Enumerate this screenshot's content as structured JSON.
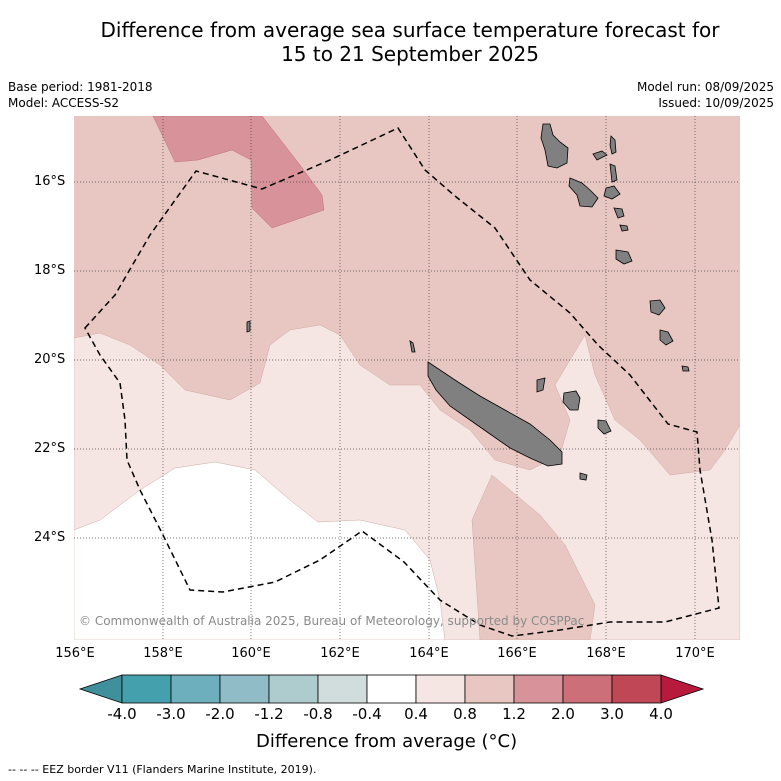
{
  "title_line1": "Difference from average sea surface temperature forecast for",
  "title_line2": "15 to 21 September 2025",
  "base_period": "Base period: 1981-2018",
  "model": "Model: ACCESS-S2",
  "model_run": "Model run: 08/09/2025",
  "issued": "Issued: 10/09/2025",
  "lat_labels": [
    "16°S",
    "18°S",
    "20°S",
    "22°S",
    "24°S"
  ],
  "lon_labels": [
    "156°E",
    "158°E",
    "160°E",
    "162°E",
    "164°E",
    "166°E",
    "168°E",
    "170°E"
  ],
  "copyright": "© Commonwealth of Australia 2025, Bureau of Meteorology, supported by COSPPac",
  "colorbar": {
    "title": "Difference from average (°C)",
    "ticks": [
      "-4.0",
      "-3.0",
      "-2.0",
      "-1.2",
      "-0.8",
      "-0.4",
      "0.4",
      "0.8",
      "1.2",
      "2.0",
      "3.0",
      "4.0"
    ],
    "colors": [
      "#45a0ae",
      "#6dafbd",
      "#8fbcc6",
      "#aecbcd",
      "#d1dcdc",
      "#ffffff",
      "#f5e6e4",
      "#e8c7c2",
      "#d7929a",
      "#cd6f78",
      "#bf4756"
    ],
    "under_color": "#3f8f9c",
    "over_color": "#b71a3c"
  },
  "footer": "--  --  -- EEZ border V11 (Flanders Marine Institute, 2019)."
}
